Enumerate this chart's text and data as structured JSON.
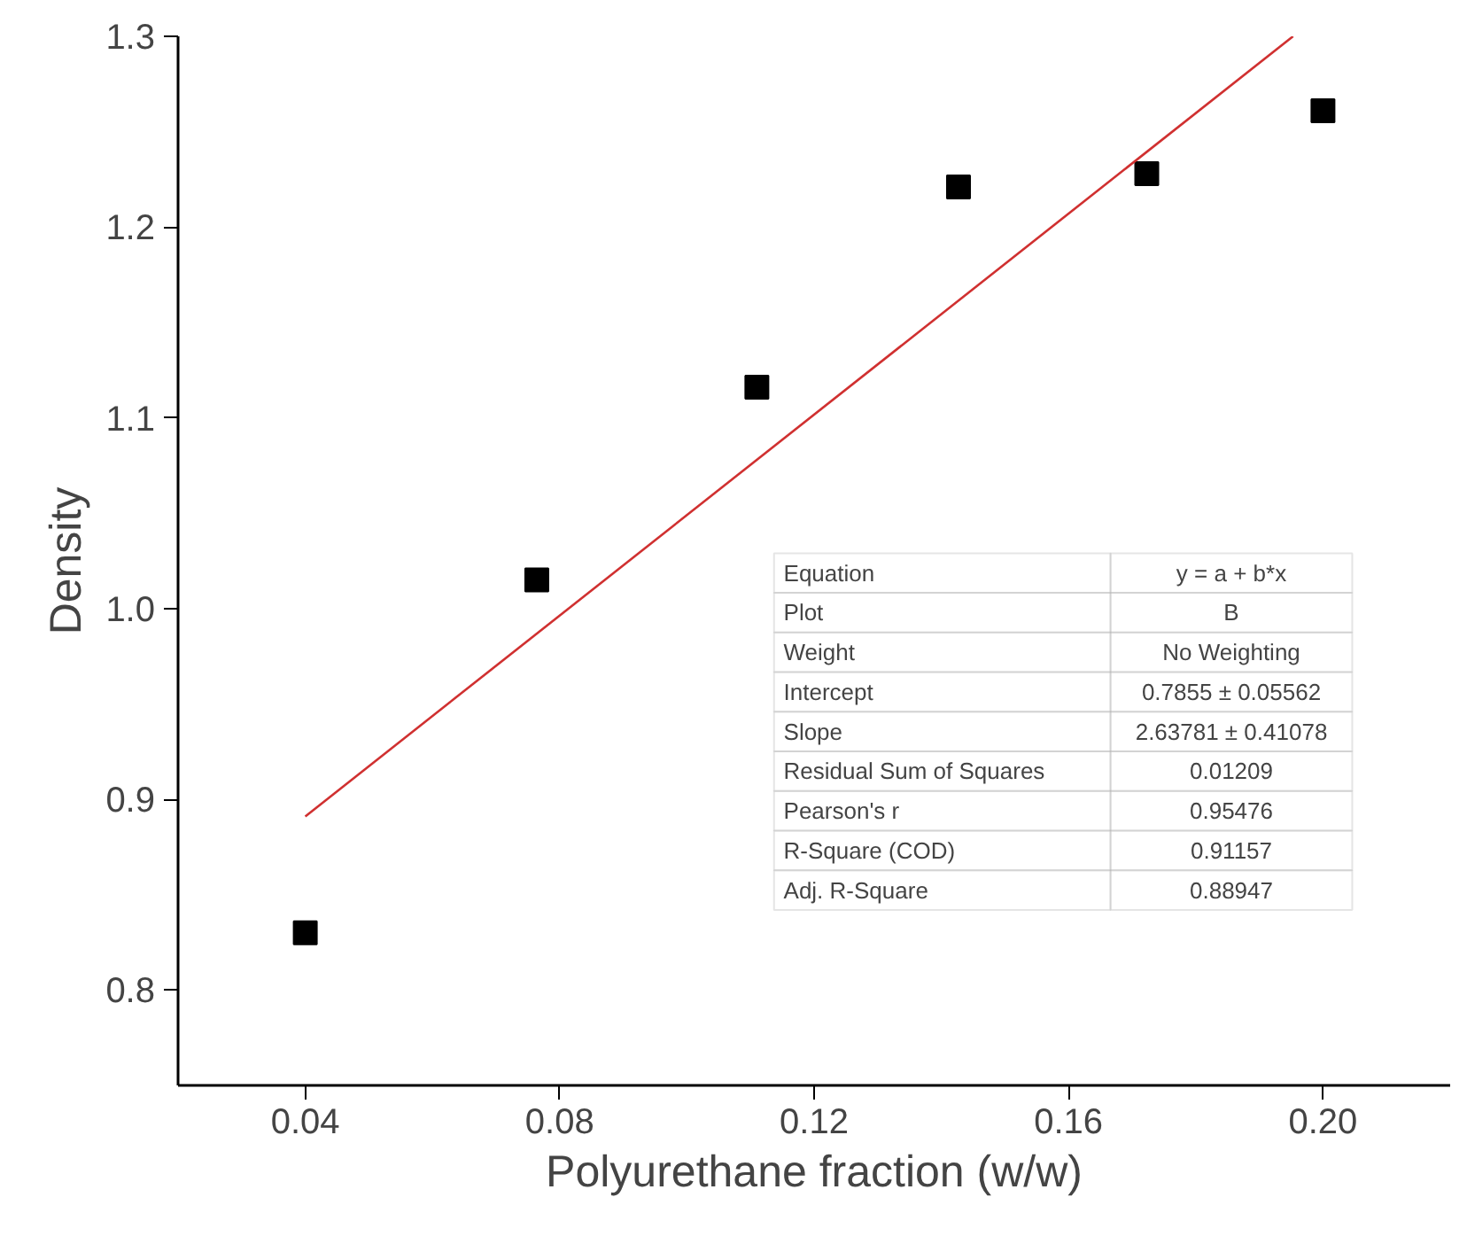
{
  "chart_data": {
    "type": "scatter",
    "xlabel": "Polyurethane fraction (w/w)",
    "ylabel": "Density",
    "xlim": [
      0.02,
      0.22
    ],
    "ylim": [
      0.75,
      1.3
    ],
    "xticks": [
      {
        "value": 0.04,
        "label": "0.04"
      },
      {
        "value": 0.08,
        "label": "0.08"
      },
      {
        "value": 0.12,
        "label": "0.12"
      },
      {
        "value": 0.16,
        "label": "0.16"
      },
      {
        "value": 0.2,
        "label": "0.20"
      }
    ],
    "yticks": [
      {
        "value": 0.8,
        "label": "0.8"
      },
      {
        "value": 0.9,
        "label": "0.9"
      },
      {
        "value": 1.0,
        "label": "1.0"
      },
      {
        "value": 1.1,
        "label": "1.1"
      },
      {
        "value": 1.2,
        "label": "1.2"
      },
      {
        "value": 1.3,
        "label": "1.3"
      }
    ],
    "grid": false,
    "series": [
      {
        "marker": "square",
        "color": "#000000",
        "x": [
          0.04,
          0.0764,
          0.111,
          0.1427,
          0.1723,
          0.2
        ],
        "values": [
          0.83,
          1.015,
          1.116,
          1.221,
          1.228,
          1.261
        ]
      },
      {
        "type": "line",
        "color": "#d03030",
        "x": [
          0.04,
          0.1953
        ],
        "values": [
          0.891,
          1.3
        ]
      }
    ],
    "annotations": [
      "Equation",
      "y = a + b*x",
      "Plot",
      "B",
      "Weight",
      "No Weighting",
      "Intercept",
      "0.7855 ± 0.05562",
      "Slope",
      "2.63781 ± 0.41078",
      "Residual Sum of Squares",
      "0.01209",
      "Pearson's r",
      "0.95476",
      "R-Square (COD)",
      "0.91157",
      "Adj. R-Square",
      "0.88947"
    ]
  }
}
